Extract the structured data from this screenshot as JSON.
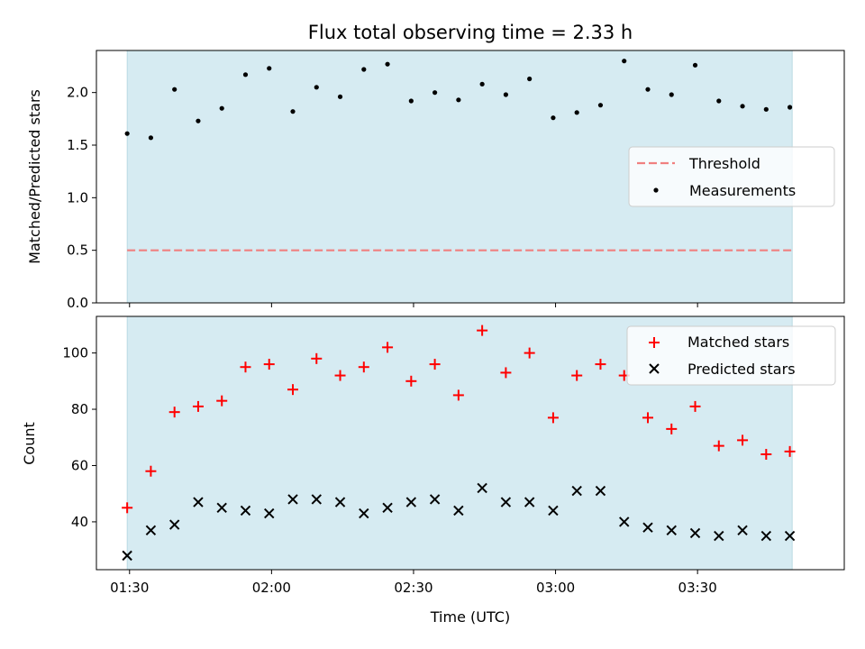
{
  "chart_data": [
    {
      "type": "scatter",
      "title": "Flux total observing time = 2.33 h",
      "xlabel": "",
      "ylabel": "Matched/Predicted stars",
      "ylim": [
        0,
        2.4
      ],
      "yticks": [
        "0.0",
        "0.5",
        "1.0",
        "1.5",
        "2.0"
      ],
      "ytick_values": [
        0,
        0.5,
        1.0,
        1.5,
        2.0
      ],
      "shaded_range_minutes": [
        89.5,
        230.0
      ],
      "shade_color": "#add8e6",
      "threshold": {
        "label": "Threshold",
        "value": 0.5,
        "color": "#f08080"
      },
      "legend": [
        "Threshold",
        "Measurements"
      ],
      "legend_position": "center-right",
      "series": [
        {
          "name": "Measurements",
          "marker": "dot",
          "color": "#000000",
          "x_minutes": [
            89.5,
            94.5,
            99.5,
            104.5,
            109.5,
            114.5,
            119.5,
            124.5,
            129.5,
            134.5,
            139.5,
            144.5,
            149.5,
            154.5,
            159.5,
            164.5,
            169.5,
            174.5,
            179.5,
            184.5,
            189.5,
            194.5,
            199.5,
            204.5,
            209.5,
            214.5,
            219.5,
            224.5,
            229.5
          ],
          "values": [
            1.61,
            1.57,
            2.03,
            1.73,
            1.85,
            2.17,
            2.23,
            1.82,
            2.05,
            1.96,
            2.22,
            2.27,
            1.92,
            2.0,
            1.93,
            2.08,
            1.98,
            2.13,
            1.76,
            1.81,
            1.88,
            2.3,
            2.03,
            1.98,
            2.26,
            1.92,
            1.87,
            1.84,
            1.86
          ]
        }
      ]
    },
    {
      "type": "scatter",
      "title": "",
      "xlabel": "Time (UTC)",
      "ylabel": "Count",
      "ylim": [
        23,
        113
      ],
      "yticks": [
        "40",
        "60",
        "80",
        "100"
      ],
      "ytick_values": [
        40,
        60,
        80,
        100
      ],
      "xlim_minutes": [
        83,
        241
      ],
      "xticks": [
        "01:30",
        "02:00",
        "02:30",
        "03:00",
        "03:30"
      ],
      "xtick_minutes": [
        90,
        120,
        150,
        180,
        210
      ],
      "shaded_range_minutes": [
        89.5,
        230.0
      ],
      "shade_color": "#add8e6",
      "legend": [
        "Matched stars",
        "Predicted stars"
      ],
      "legend_position": "upper-right",
      "series": [
        {
          "name": "Matched stars",
          "marker": "plus",
          "color": "#ff0000",
          "x_minutes": [
            89.5,
            94.5,
            99.5,
            104.5,
            109.5,
            114.5,
            119.5,
            124.5,
            129.5,
            134.5,
            139.5,
            144.5,
            149.5,
            154.5,
            159.5,
            164.5,
            169.5,
            174.5,
            179.5,
            184.5,
            189.5,
            194.5,
            199.5,
            204.5,
            209.5,
            214.5,
            219.5,
            224.5,
            229.5
          ],
          "values": [
            45,
            58,
            79,
            81,
            83,
            95,
            96,
            87,
            98,
            92,
            95,
            102,
            90,
            96,
            85,
            108,
            93,
            100,
            77,
            92,
            96,
            92,
            77,
            73,
            81,
            67,
            69,
            64,
            65
          ]
        },
        {
          "name": "Predicted stars",
          "marker": "x",
          "color": "#000000",
          "x_minutes": [
            89.5,
            94.5,
            99.5,
            104.5,
            109.5,
            114.5,
            119.5,
            124.5,
            129.5,
            134.5,
            139.5,
            144.5,
            149.5,
            154.5,
            159.5,
            164.5,
            169.5,
            174.5,
            179.5,
            184.5,
            189.5,
            194.5,
            199.5,
            204.5,
            209.5,
            214.5,
            219.5,
            224.5,
            229.5
          ],
          "values": [
            28,
            37,
            39,
            47,
            45,
            44,
            43,
            48,
            48,
            47,
            43,
            45,
            47,
            48,
            44,
            52,
            47,
            47,
            44,
            51,
            51,
            40,
            38,
            37,
            36,
            35,
            37,
            35,
            35
          ]
        }
      ]
    }
  ]
}
